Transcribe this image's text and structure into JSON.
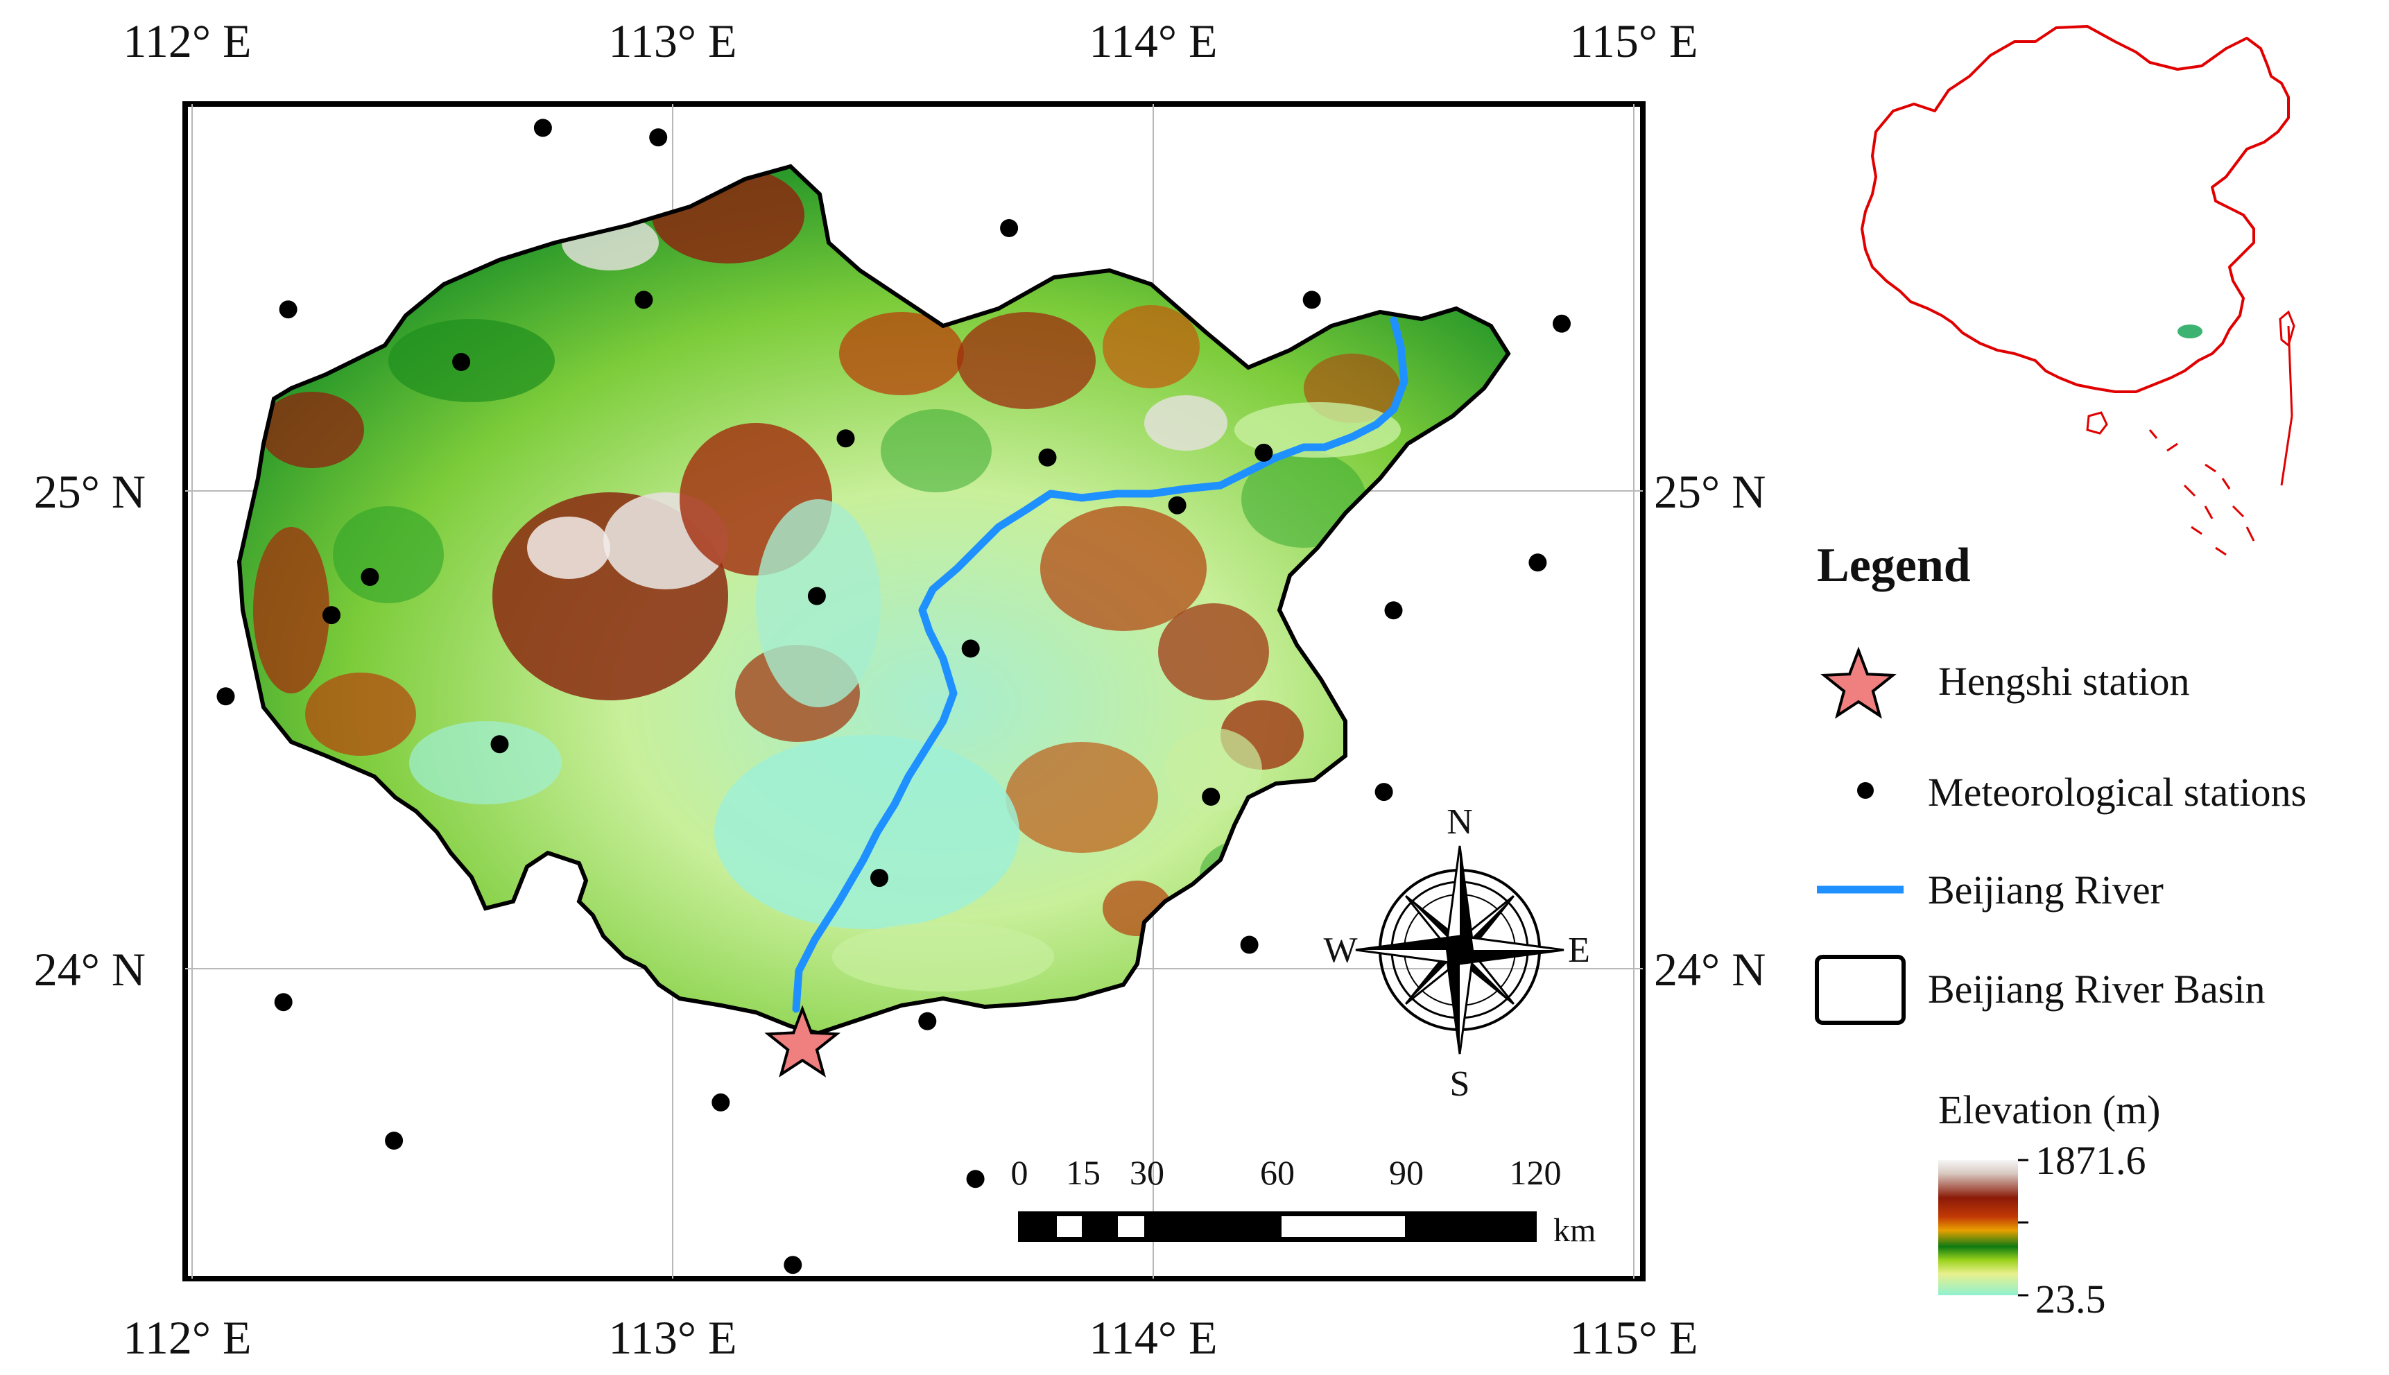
{
  "axes": {
    "top_lon": [
      "112° E",
      "113° E",
      "114° E",
      "115° E"
    ],
    "bottom_lon": [
      "112° E",
      "113° E",
      "114° E",
      "115° E"
    ],
    "left_lat": [
      "25° N",
      "24° N"
    ],
    "right_lat": [
      "25° N",
      "24° N"
    ]
  },
  "compass": {
    "n": "N",
    "s": "S",
    "e": "E",
    "w": "W"
  },
  "scalebar": {
    "ticks": [
      "0",
      "15",
      "30",
      "60",
      "90",
      "120"
    ],
    "unit": "km"
  },
  "legend": {
    "title": "Legend",
    "items": [
      {
        "label": "Hengshi station",
        "symbol": "star"
      },
      {
        "label": "Meteorological stations",
        "symbol": "dot"
      },
      {
        "label": "Beijiang River",
        "symbol": "line"
      },
      {
        "label": "Beijiang River Basin",
        "symbol": "box"
      }
    ],
    "elevation_title": "Elevation (m)",
    "elevation_max": "1871.6",
    "elevation_min": "23.5"
  },
  "colors": {
    "river": "#1e90ff",
    "star": "#f08080",
    "china_outline": "#e00000",
    "basin_inset": "#3cb371"
  },
  "stations": [
    [
      112.73,
      25.76
    ],
    [
      112.97,
      25.74
    ],
    [
      113.7,
      25.55
    ],
    [
      112.2,
      25.38
    ],
    [
      112.94,
      25.4
    ],
    [
      114.33,
      25.4
    ],
    [
      114.85,
      25.35
    ],
    [
      112.56,
      25.27
    ],
    [
      113.36,
      25.11
    ],
    [
      113.78,
      25.07
    ],
    [
      114.23,
      25.08
    ],
    [
      114.05,
      24.97
    ],
    [
      114.8,
      24.85
    ],
    [
      112.37,
      24.82
    ],
    [
      113.3,
      24.78
    ],
    [
      112.29,
      24.74
    ],
    [
      114.5,
      24.75
    ],
    [
      113.62,
      24.67
    ],
    [
      112.07,
      24.57
    ],
    [
      112.64,
      24.47
    ],
    [
      114.48,
      24.37
    ],
    [
      114.12,
      24.36
    ],
    [
      113.43,
      24.19
    ],
    [
      114.2,
      24.05
    ],
    [
      112.19,
      23.93
    ],
    [
      113.53,
      23.89
    ],
    [
      113.1,
      23.72
    ],
    [
      112.42,
      23.64
    ],
    [
      113.63,
      23.56
    ],
    [
      113.25,
      23.38
    ]
  ],
  "hengshi": [
    113.27,
    23.84
  ]
}
